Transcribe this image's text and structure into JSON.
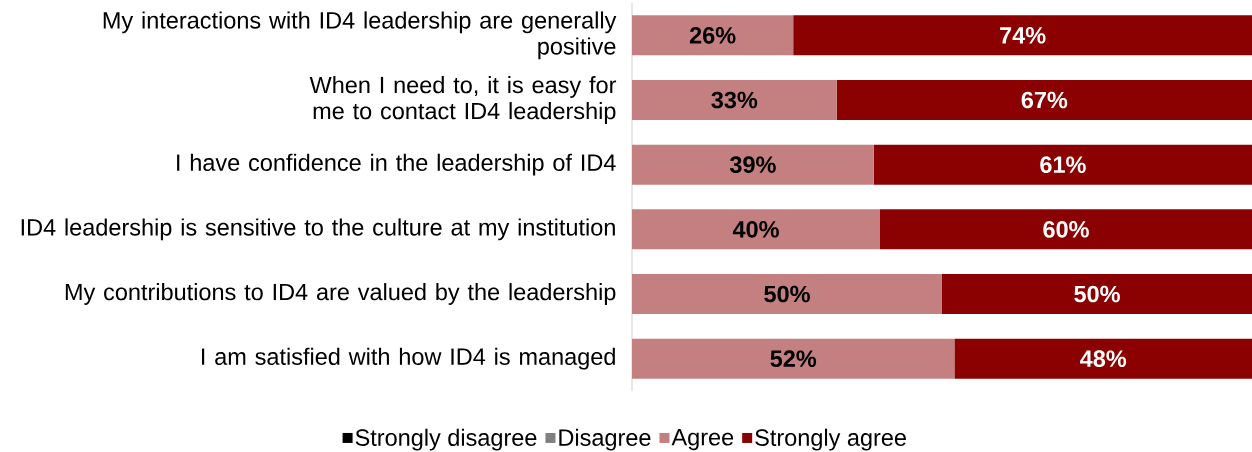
{
  "chart_data": {
    "type": "bar",
    "orientation": "horizontal",
    "stacked": true,
    "categories": [
      "My interactions with ID4 leadership are generally positive",
      "When I need to, it is easy for me to contact ID4 leadership",
      "I have confidence in the leadership of ID4",
      "ID4 leadership is sensitive to the culture at my institution",
      "My contributions to ID4 are valued by the leadership",
      "I am satisfied with how ID4 is managed"
    ],
    "series": [
      {
        "name": "Strongly disagree",
        "color": "#000000",
        "values": [
          0,
          0,
          0,
          0,
          0,
          0
        ]
      },
      {
        "name": "Disagree",
        "color": "#808080",
        "values": [
          0,
          0,
          0,
          0,
          0,
          0
        ]
      },
      {
        "name": "Agree",
        "color": "#c48080",
        "values": [
          26,
          33,
          39,
          40,
          50,
          52
        ],
        "value_labels": [
          "26%",
          "33%",
          "39%",
          "40%",
          "50%",
          "52%"
        ]
      },
      {
        "name": "Strongly agree",
        "color": "#8b0000",
        "values": [
          74,
          67,
          61,
          60,
          50,
          48
        ],
        "value_labels": [
          "74%",
          "67%",
          "61%",
          "60%",
          "50%",
          "48%"
        ]
      }
    ],
    "xlim": [
      0,
      100
    ],
    "tick_labels": "y",
    "grid": false,
    "legend": "bottom"
  }
}
